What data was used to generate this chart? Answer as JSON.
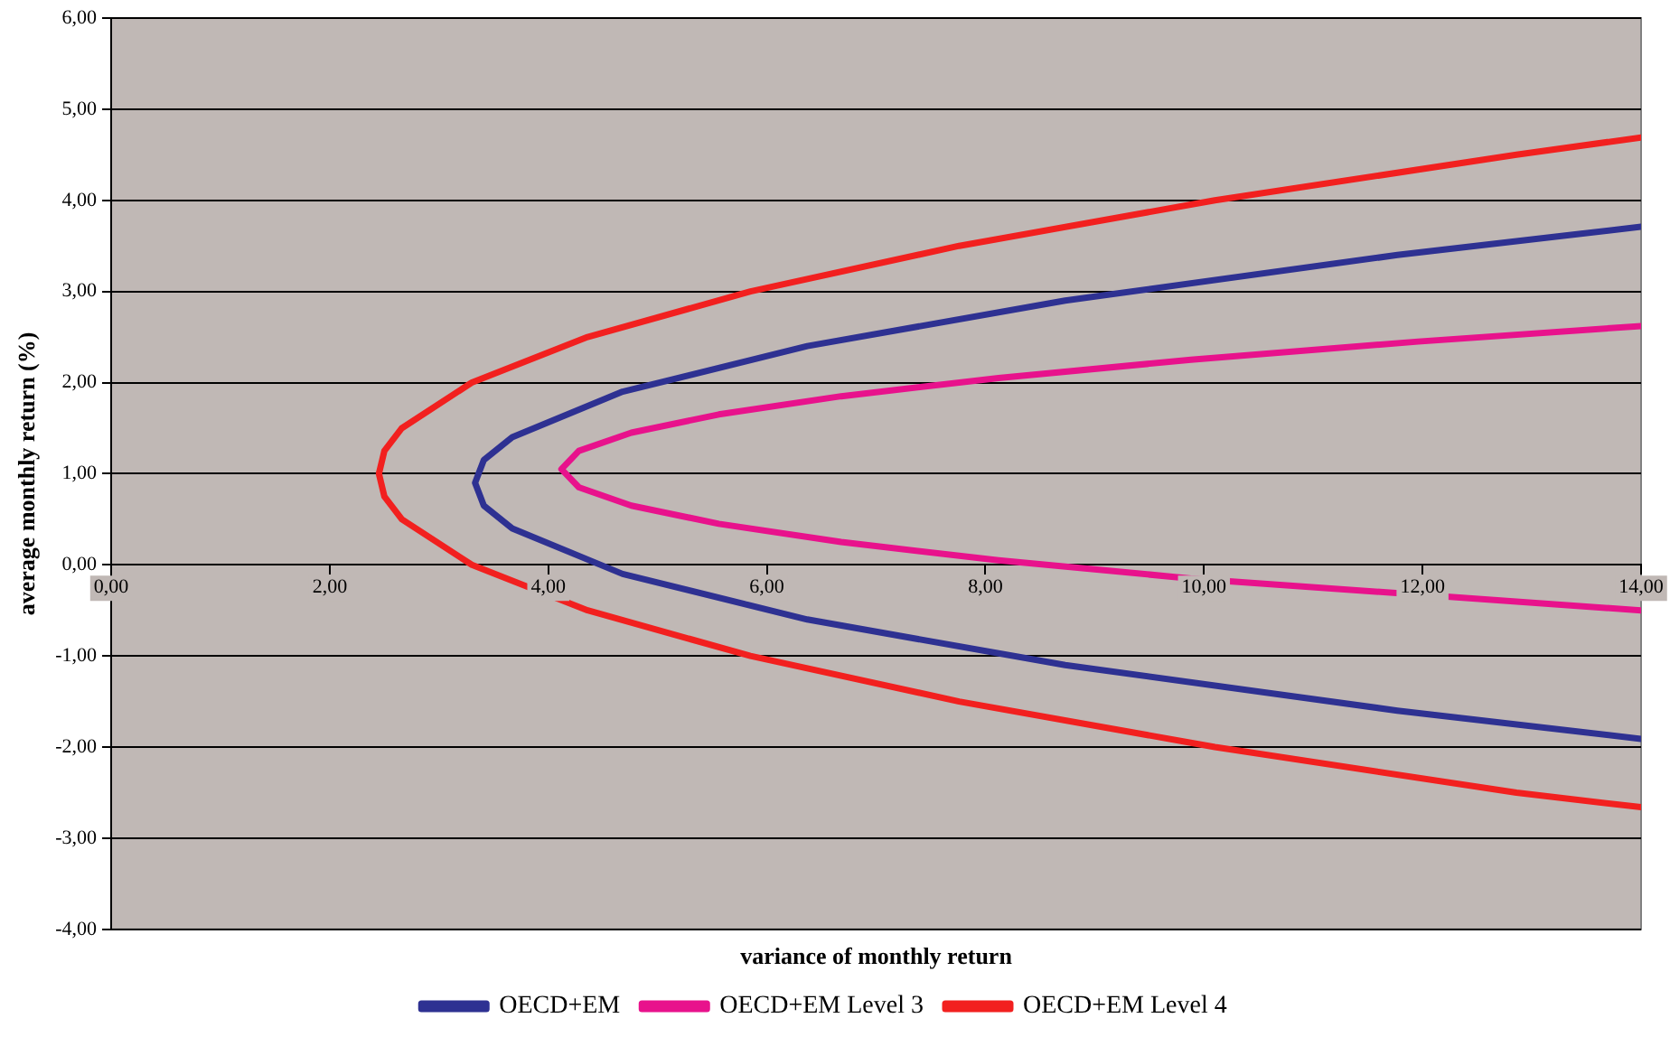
{
  "chart_data": {
    "type": "line",
    "xlabel": "variance of monthly return",
    "ylabel": "average monthly return (%)",
    "xlim": [
      0,
      14
    ],
    "xticks": [
      {
        "value": 0,
        "label": "0,00"
      },
      {
        "value": 2,
        "label": "2,00"
      },
      {
        "value": 4,
        "label": "4,00"
      },
      {
        "value": 6,
        "label": "6,00"
      },
      {
        "value": 8,
        "label": "8,00"
      },
      {
        "value": 10,
        "label": "10,00"
      },
      {
        "value": 12,
        "label": "12,00"
      },
      {
        "value": 14,
        "label": "14,00"
      }
    ],
    "ylim": [
      -4,
      6
    ],
    "yticks": [
      {
        "value": -4,
        "label": "-4,00"
      },
      {
        "value": -3,
        "label": "-3,00"
      },
      {
        "value": -2,
        "label": "-2,00"
      },
      {
        "value": -1,
        "label": "-1,00"
      },
      {
        "value": 0,
        "label": "0,00"
      },
      {
        "value": 1,
        "label": "1,00"
      },
      {
        "value": 2,
        "label": "2,00"
      },
      {
        "value": 3,
        "label": "3,00"
      },
      {
        "value": 4,
        "label": "4,00"
      },
      {
        "value": 5,
        "label": "5,00"
      },
      {
        "value": 6,
        "label": "6,00"
      }
    ],
    "grid": "y",
    "legend": "bottom",
    "marker": "none",
    "line_style": "solid",
    "series": [
      {
        "name": "OECD+EM",
        "color": "#2e3192",
        "x": [
          14,
          11.77,
          8.73,
          6.37,
          4.68,
          3.67,
          3.41,
          3.33,
          3.41,
          3.67,
          4.68,
          6.37,
          8.73,
          11.77,
          14
        ],
        "values": [
          3.71,
          3.4,
          2.9,
          2.4,
          1.9,
          1.4,
          1.15,
          0.9,
          0.65,
          0.4,
          -0.1,
          -0.6,
          -1.1,
          -1.6,
          -1.91
        ]
      },
      {
        "name": "OECD+EM Level 3",
        "color": "#e8128c",
        "x": [
          14,
          11.96,
          9.88,
          8.12,
          6.68,
          5.56,
          4.76,
          4.28,
          4.12,
          4.28,
          4.76,
          5.56,
          6.68,
          8.12,
          9.88,
          14
        ],
        "values": [
          2.62,
          2.45,
          2.25,
          2.05,
          1.85,
          1.65,
          1.45,
          1.25,
          1.05,
          0.85,
          0.65,
          0.45,
          0.25,
          0.05,
          -0.15,
          -0.5
        ]
      },
      {
        "name": "OECD+EM Level 4",
        "color": "#f2201f",
        "x": [
          14,
          12.86,
          10.1,
          7.76,
          5.85,
          4.36,
          3.3,
          2.66,
          2.5,
          2.45,
          2.5,
          2.66,
          3.3,
          4.36,
          5.85,
          7.76,
          10.1,
          12.86,
          14
        ],
        "values": [
          4.69,
          4.5,
          4,
          3.5,
          3,
          2.5,
          2,
          1.5,
          1.25,
          1,
          0.75,
          0.5,
          0,
          -0.5,
          -1,
          -1.5,
          -2,
          -2.5,
          -2.66
        ]
      }
    ]
  }
}
